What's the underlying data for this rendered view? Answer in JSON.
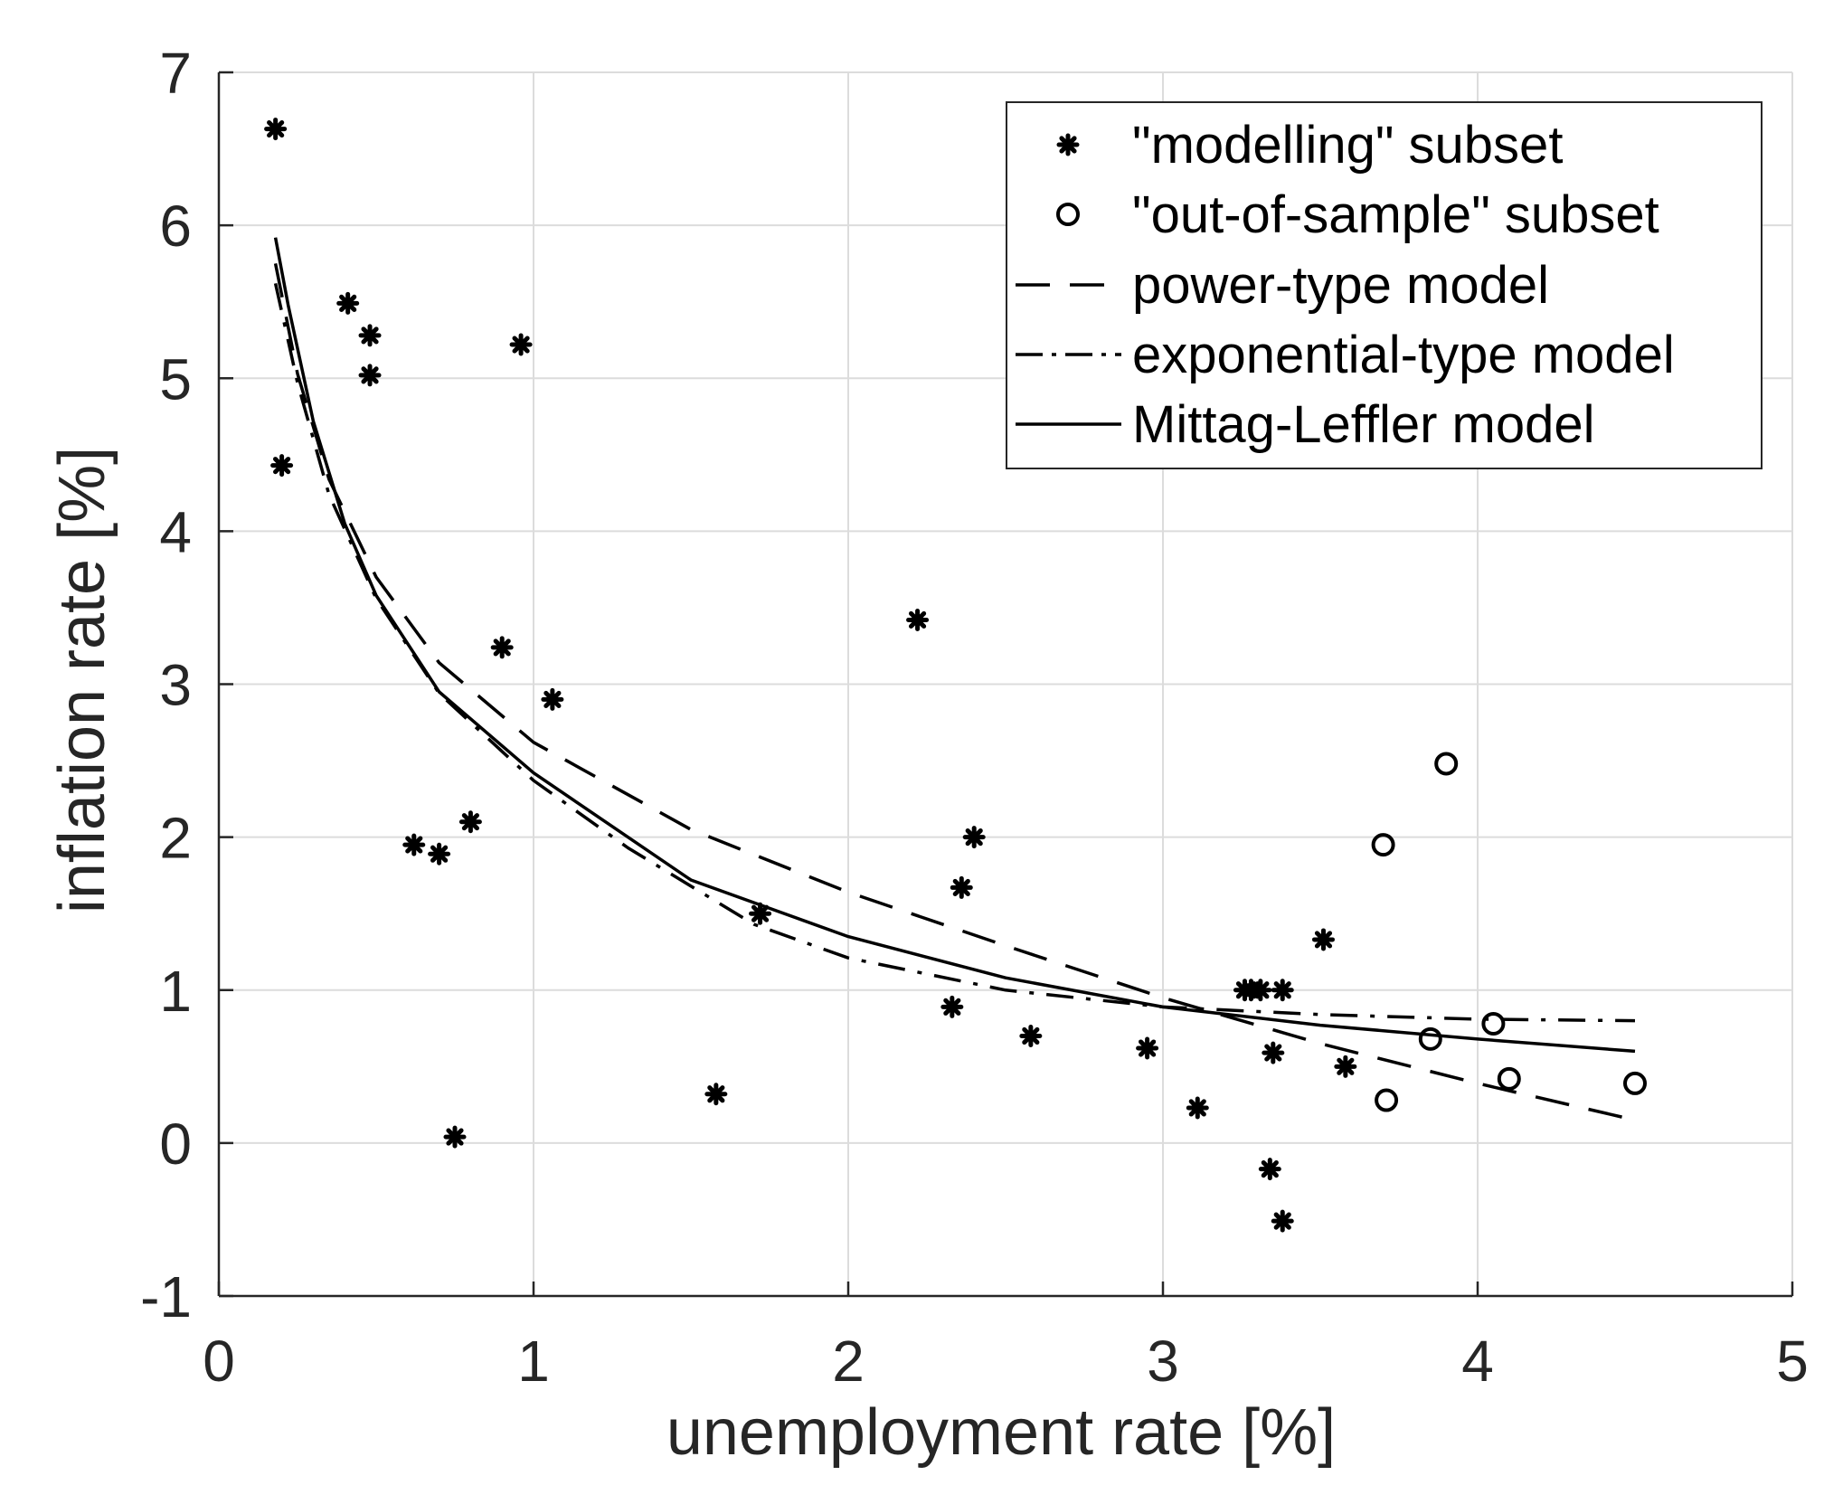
{
  "chart_data": {
    "type": "scatter",
    "title": "",
    "xlabel": "unemployment rate [%]",
    "ylabel": "inflation rate [%]",
    "xlim": [
      0,
      5
    ],
    "ylim": [
      -1,
      7
    ],
    "xticks": [
      "0",
      "1",
      "2",
      "3",
      "4",
      "5"
    ],
    "yticks": [
      "-1",
      "0",
      "1",
      "2",
      "3",
      "4",
      "5",
      "6",
      "7"
    ],
    "grid": true,
    "legend_position": "top-right",
    "series": [
      {
        "name": "\"modelling\" subset",
        "kind": "scatter",
        "marker": "asterisk",
        "points": [
          [
            0.18,
            6.63
          ],
          [
            0.2,
            4.43
          ],
          [
            0.41,
            5.49
          ],
          [
            0.48,
            5.28
          ],
          [
            0.48,
            5.02
          ],
          [
            0.96,
            5.22
          ],
          [
            0.9,
            3.24
          ],
          [
            1.06,
            2.9
          ],
          [
            0.62,
            1.95
          ],
          [
            0.7,
            1.89
          ],
          [
            0.8,
            2.1
          ],
          [
            0.75,
            0.04
          ],
          [
            1.58,
            0.32
          ],
          [
            1.72,
            1.5
          ],
          [
            2.22,
            3.42
          ],
          [
            2.4,
            2.0
          ],
          [
            2.36,
            1.67
          ],
          [
            2.33,
            0.89
          ],
          [
            2.58,
            0.7
          ],
          [
            2.95,
            0.62
          ],
          [
            3.11,
            0.23
          ],
          [
            3.26,
            1.0
          ],
          [
            3.28,
            1.0
          ],
          [
            3.31,
            1.0
          ],
          [
            3.38,
            1.0
          ],
          [
            3.35,
            0.59
          ],
          [
            3.34,
            -0.17
          ],
          [
            3.38,
            -0.51
          ],
          [
            3.51,
            1.33
          ],
          [
            3.58,
            0.5
          ]
        ]
      },
      {
        "name": "\"out-of-sample\" subset",
        "kind": "scatter",
        "marker": "circle",
        "points": [
          [
            3.9,
            2.48
          ],
          [
            3.7,
            1.95
          ],
          [
            3.71,
            0.28
          ],
          [
            3.85,
            0.68
          ],
          [
            4.05,
            0.78
          ],
          [
            4.1,
            0.42
          ],
          [
            4.5,
            0.39
          ]
        ]
      },
      {
        "name": "power-type model",
        "kind": "line",
        "style": "dashed",
        "points": [
          [
            0.18,
            5.75
          ],
          [
            0.25,
            5.03
          ],
          [
            0.35,
            4.34
          ],
          [
            0.5,
            3.7
          ],
          [
            0.7,
            3.14
          ],
          [
            1.0,
            2.62
          ],
          [
            1.5,
            2.05
          ],
          [
            2.0,
            1.64
          ],
          [
            2.5,
            1.29
          ],
          [
            3.0,
            0.95
          ],
          [
            3.5,
            0.65
          ],
          [
            4.0,
            0.39
          ],
          [
            4.5,
            0.15
          ]
        ]
      },
      {
        "name": "exponential-type model",
        "kind": "line",
        "style": "dashdot",
        "points": [
          [
            0.18,
            5.62
          ],
          [
            0.25,
            4.97
          ],
          [
            0.35,
            4.24
          ],
          [
            0.5,
            3.56
          ],
          [
            0.7,
            2.94
          ],
          [
            1.0,
            2.37
          ],
          [
            1.3,
            1.93
          ],
          [
            1.7,
            1.43
          ],
          [
            2.0,
            1.21
          ],
          [
            2.5,
            1.0
          ],
          [
            3.0,
            0.89
          ],
          [
            3.5,
            0.84
          ],
          [
            4.0,
            0.81
          ],
          [
            4.5,
            0.8
          ]
        ]
      },
      {
        "name": "Mittag-Leffler model",
        "kind": "line",
        "style": "solid",
        "points": [
          [
            0.18,
            5.92
          ],
          [
            0.22,
            5.48
          ],
          [
            0.3,
            4.72
          ],
          [
            0.4,
            4.05
          ],
          [
            0.5,
            3.58
          ],
          [
            0.7,
            2.95
          ],
          [
            1.0,
            2.42
          ],
          [
            1.5,
            1.72
          ],
          [
            2.0,
            1.35
          ],
          [
            2.5,
            1.08
          ],
          [
            3.0,
            0.89
          ],
          [
            3.5,
            0.77
          ],
          [
            4.0,
            0.68
          ],
          [
            4.5,
            0.6
          ]
        ]
      }
    ]
  }
}
